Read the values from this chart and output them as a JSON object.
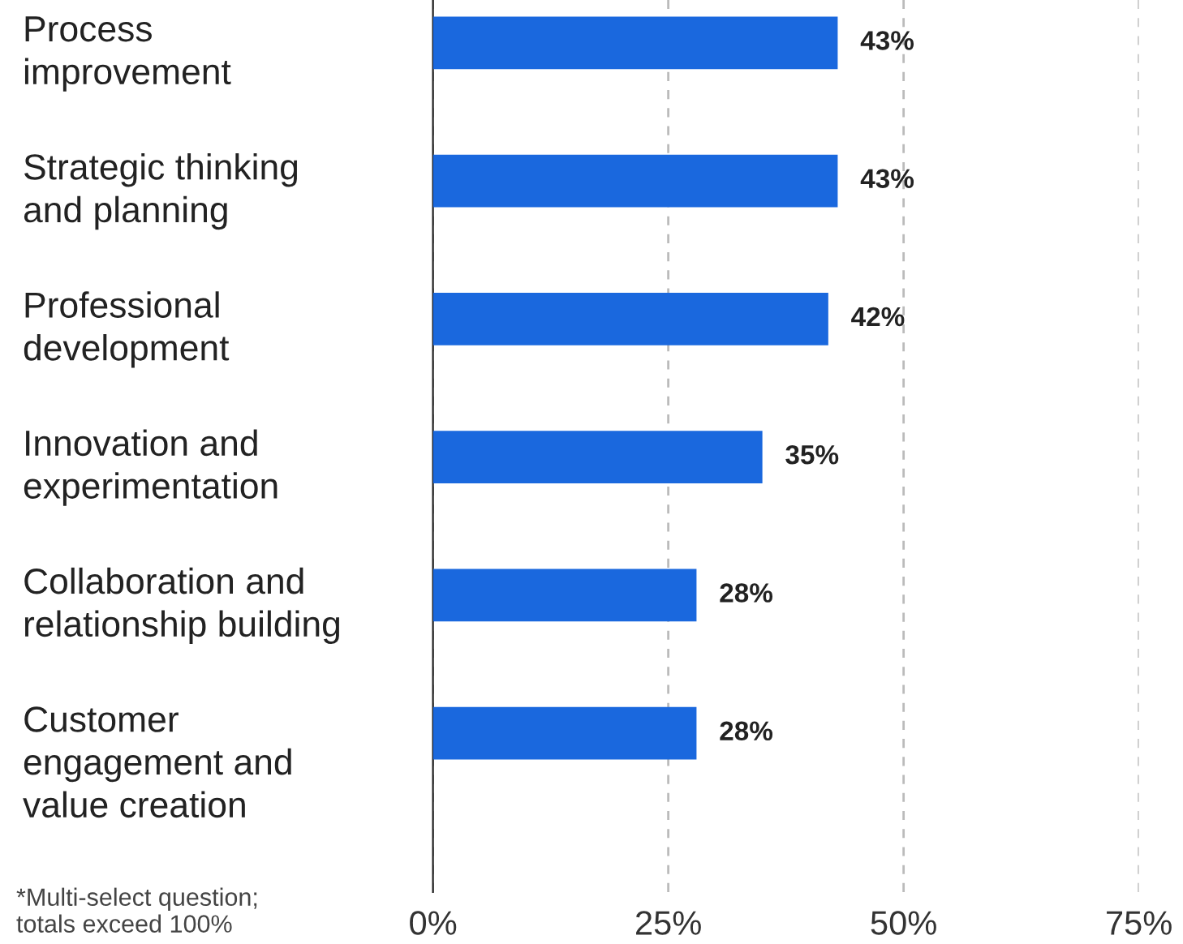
{
  "chart_data": {
    "type": "bar",
    "orientation": "horizontal",
    "categories": [
      "Process\nimprovement",
      "Strategic thinking\nand planning",
      "Professional\ndevelopment",
      "Innovation and\nexperimentation",
      "Collaboration and\nrelationship building",
      "Customer\nengagement and\nvalue creation"
    ],
    "values": [
      43,
      43,
      42,
      35,
      28,
      28
    ],
    "value_labels": [
      "43%",
      "43%",
      "42%",
      "35%",
      "28%",
      "28%"
    ],
    "color": "#1a68de",
    "xlim": [
      0,
      75
    ],
    "xticks": [
      {
        "value": 0,
        "label": "0%"
      },
      {
        "value": 25,
        "label": "25%"
      },
      {
        "value": 50,
        "label": "50%"
      },
      {
        "value": 75,
        "label": "75%"
      }
    ],
    "grid": "x",
    "legend": false,
    "annotations": [
      "*Multi-select question;\ntotals exceed 100%"
    ]
  }
}
